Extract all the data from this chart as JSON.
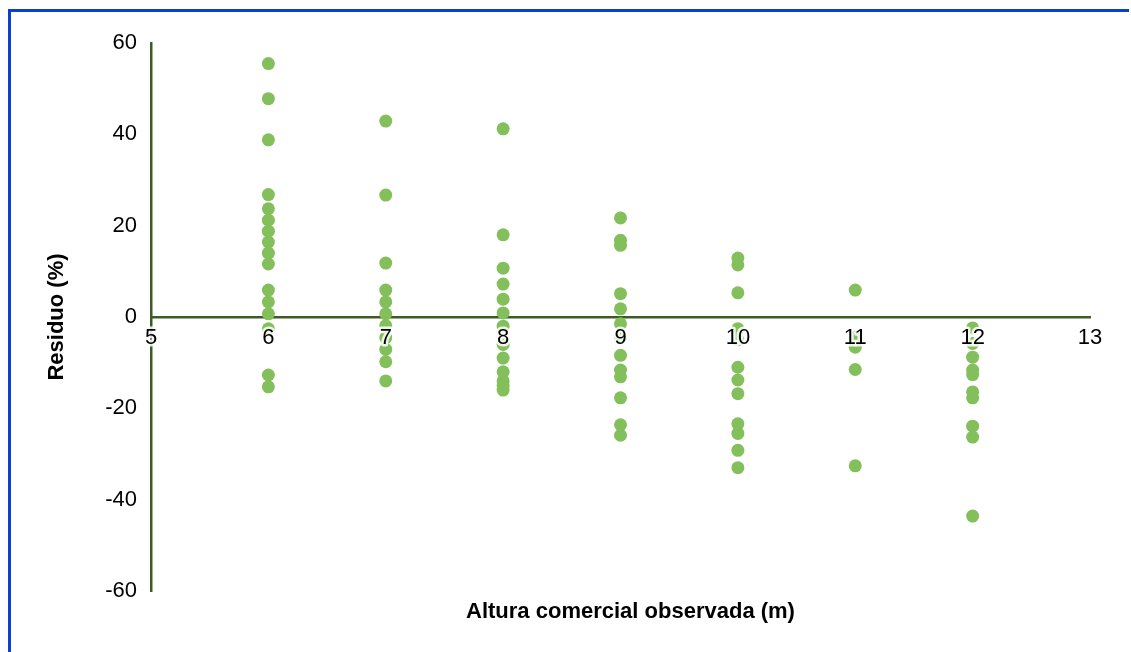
{
  "chart_data": {
    "type": "scatter",
    "xlabel": "Altura comercial observada (m)",
    "ylabel": "Residuo (%)",
    "xlim": [
      5,
      13
    ],
    "xticks": [
      5,
      6,
      7,
      8,
      9,
      10,
      11,
      12,
      13
    ],
    "ylim": [
      -60,
      60
    ],
    "yticks": [
      -60,
      -40,
      -20,
      0,
      20,
      40,
      60
    ],
    "grid": false,
    "legend": false,
    "marker": "circle",
    "series": [
      {
        "color": "#83bf5b",
        "x": [
          6,
          6,
          6,
          6,
          6,
          6,
          6,
          6,
          6,
          6,
          6,
          6,
          6,
          6,
          6,
          6,
          7,
          7,
          7,
          7,
          7,
          7,
          7,
          7,
          7,
          7,
          7,
          8,
          8,
          8,
          8,
          8,
          8,
          8,
          8,
          8,
          8,
          8,
          8,
          8,
          9,
          9,
          9,
          9,
          9,
          9,
          9,
          9,
          9,
          9,
          9,
          9,
          9,
          10,
          10,
          10,
          10,
          10,
          10,
          10,
          10,
          10,
          10,
          10,
          10,
          11,
          11,
          11,
          11,
          11,
          12,
          12,
          12,
          12,
          12,
          12,
          12,
          12,
          12,
          12
        ],
        "values": [
          55.5,
          47.8,
          38.8,
          26.8,
          23.7,
          21.2,
          18.8,
          16.4,
          14,
          11.6,
          5.9,
          3.3,
          0.7,
          -2.6,
          -12.7,
          -15.3,
          42.9,
          26.7,
          11.8,
          5.9,
          3.3,
          0.7,
          -1.9,
          -4.5,
          -7.1,
          -9.8,
          -14,
          41.2,
          18,
          10.7,
          7.2,
          3.9,
          0.9,
          -2,
          -6,
          -9,
          -12,
          -14,
          -15,
          -16,
          21.7,
          16.8,
          15.7,
          5.1,
          1.8,
          -1.5,
          -4.6,
          -8.4,
          -11.6,
          -13.1,
          -17.7,
          -23.6,
          -25.9,
          12.9,
          11.4,
          5.3,
          -2.6,
          -5,
          -11,
          -13.8,
          -16.8,
          -23.4,
          -25.5,
          -29.2,
          -33,
          5.9,
          -4.4,
          -6.6,
          -11.5,
          -32.6,
          -2.4,
          -5.8,
          -8.8,
          -11.6,
          -12.6,
          -16.4,
          -17.7,
          -23.9,
          -26.3,
          -43.6
        ]
      }
    ]
  }
}
